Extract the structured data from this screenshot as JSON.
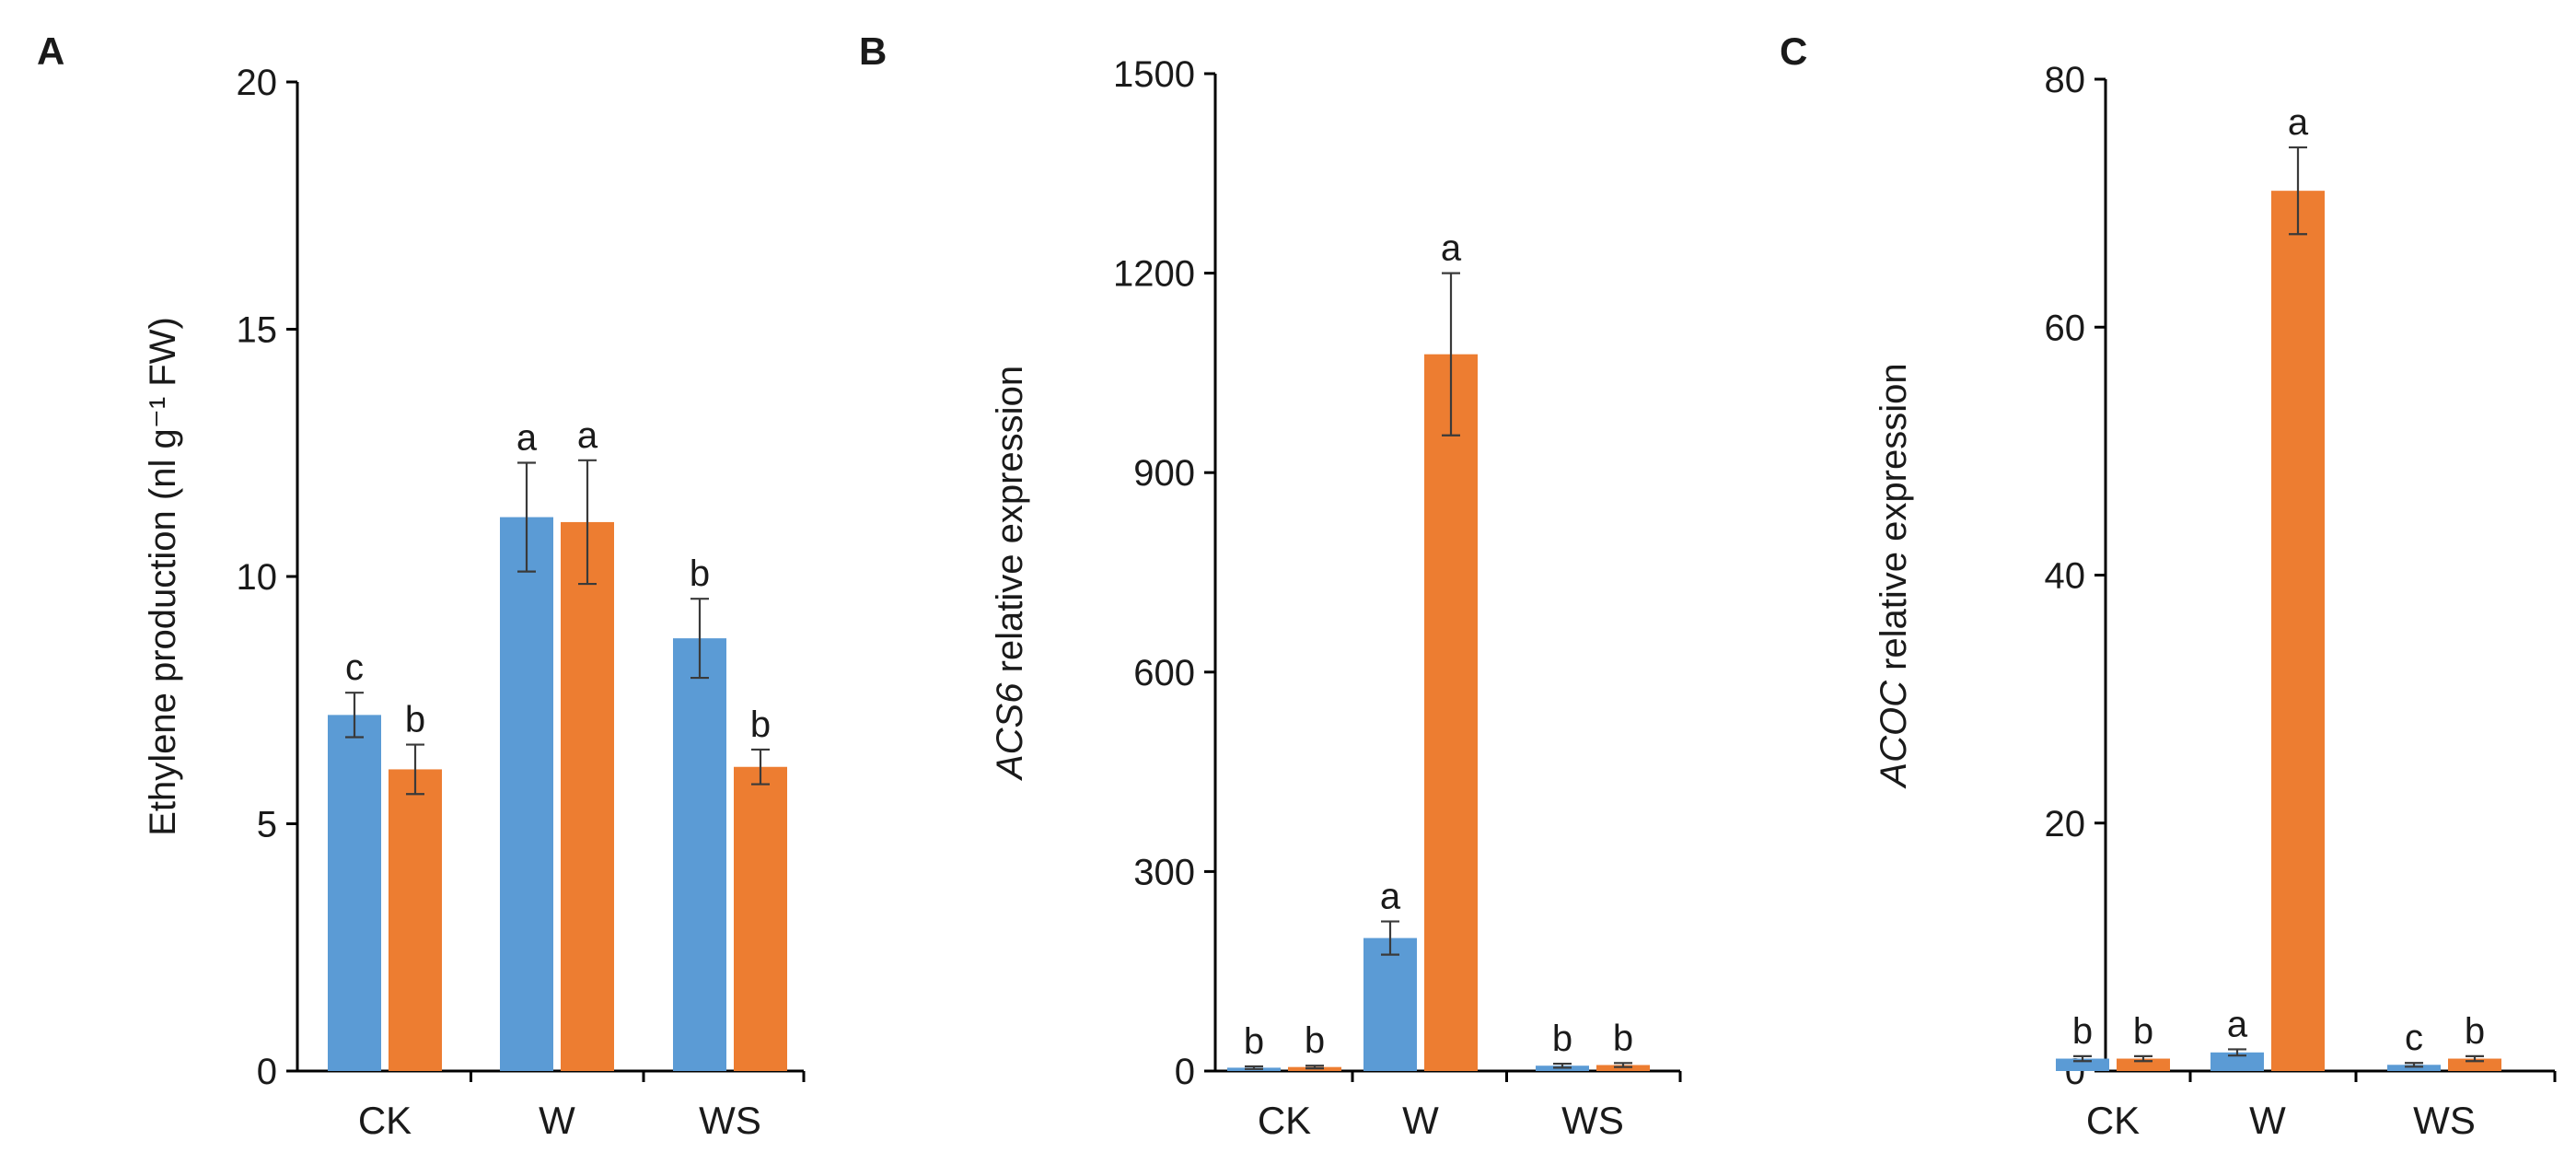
{
  "figure": {
    "panels": [
      "A",
      "B",
      "C"
    ]
  },
  "chart_data": [
    {
      "type": "bar",
      "panel": "A",
      "categories": [
        "CK",
        "W",
        "WS"
      ],
      "ylabel": "Ethylene production (nl g⁻¹ FW)",
      "ylabel_italic_part": "",
      "ylabel_rest": "Ethylene production (nl g⁻¹ FW)",
      "ylim": [
        0,
        20
      ],
      "yticks": [
        0,
        5,
        10,
        15,
        20
      ],
      "series": [
        {
          "name": "series1",
          "color": "#5b9bd5",
          "values": [
            7.2,
            11.2,
            8.75
          ],
          "errors": [
            0.45,
            1.1,
            0.8
          ],
          "letters": [
            "c",
            "a",
            "b"
          ]
        },
        {
          "name": "series2",
          "color": "#ed7d31",
          "values": [
            6.1,
            11.1,
            6.15
          ],
          "errors": [
            0.5,
            1.25,
            0.35
          ],
          "letters": [
            "b",
            "a",
            "b"
          ]
        }
      ]
    },
    {
      "type": "bar",
      "panel": "B",
      "categories": [
        "CK",
        "W",
        "WS"
      ],
      "ylabel": "ACS6 relative expression",
      "ylabel_italic_part": "ACS6",
      "ylabel_rest": " relative expression",
      "ylim": [
        0,
        1500
      ],
      "yticks": [
        0,
        300,
        600,
        900,
        1200,
        1500
      ],
      "series": [
        {
          "name": "series1",
          "color": "#5b9bd5",
          "values": [
            5,
            200,
            8
          ],
          "errors": [
            2,
            25,
            3
          ],
          "letters": [
            "b",
            "a",
            "b"
          ]
        },
        {
          "name": "series2",
          "color": "#ed7d31",
          "values": [
            6,
            1078,
            9
          ],
          "errors": [
            2,
            122,
            3
          ],
          "letters": [
            "b",
            "a",
            "b"
          ]
        }
      ]
    },
    {
      "type": "bar",
      "panel": "C",
      "categories": [
        "CK",
        "W",
        "WS"
      ],
      "ylabel": "ACOC relative expression",
      "ylabel_italic_part": "ACOC",
      "ylabel_rest": " relative expression",
      "ylim": [
        0,
        80
      ],
      "yticks": [
        0,
        20,
        40,
        60,
        80
      ],
      "series": [
        {
          "name": "series1",
          "color": "#5b9bd5",
          "values": [
            1.0,
            1.5,
            0.5
          ],
          "errors": [
            0.2,
            0.25,
            0.15
          ],
          "letters": [
            "b",
            "a",
            "c"
          ]
        },
        {
          "name": "series2",
          "color": "#ed7d31",
          "values": [
            1.0,
            71.0,
            1.0
          ],
          "errors": [
            0.2,
            3.5,
            0.2
          ],
          "letters": [
            "b",
            "a",
            "b"
          ]
        }
      ]
    }
  ]
}
